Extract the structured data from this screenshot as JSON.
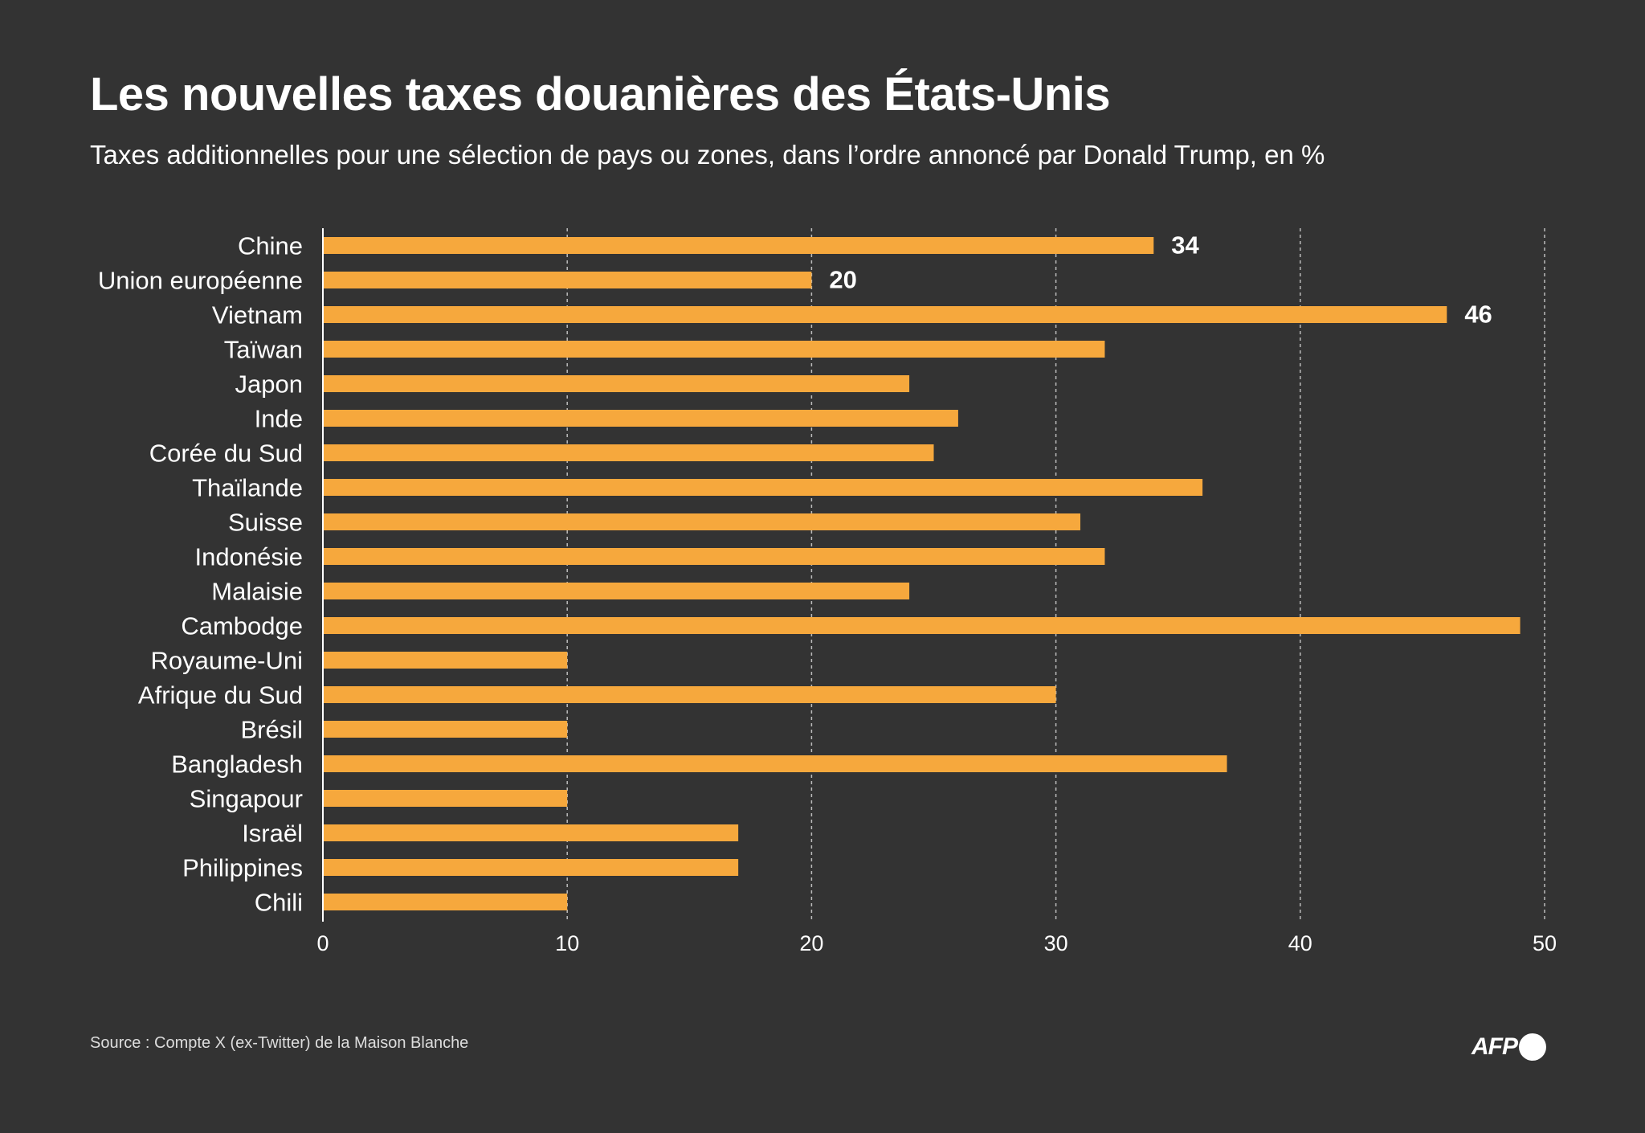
{
  "title": "Les nouvelles taxes douanières des États-Unis",
  "subtitle": "Taxes additionnelles pour une sélection de pays ou zones, dans l’ordre annoncé par Donald Trump, en %",
  "source": "Source : Compte X (ex-Twitter) de la Maison Blanche",
  "logo_text": "AFP",
  "colors": {
    "background": "#333333",
    "bar": "#F6A83D",
    "grid": "#bbbbbb",
    "text": "#ffffff"
  },
  "chart_data": {
    "type": "bar",
    "orientation": "horizontal",
    "title": "Les nouvelles taxes douanières des États-Unis",
    "subtitle": "Taxes additionnelles pour une sélection de pays ou zones, dans l’ordre annoncé par Donald Trump, en %",
    "xlabel": "",
    "ylabel": "",
    "xlim": [
      0,
      50
    ],
    "xticks": [
      0,
      10,
      20,
      30,
      40,
      50
    ],
    "grid": "vertical dashed",
    "categories": [
      "Chine",
      "Union européenne",
      "Vietnam",
      "Taïwan",
      "Japon",
      "Inde",
      "Corée du Sud",
      "Thaïlande",
      "Suisse",
      "Indonésie",
      "Malaisie",
      "Cambodge",
      "Royaume-Uni",
      "Afrique du Sud",
      "Brésil",
      "Bangladesh",
      "Singapour",
      "Israël",
      "Philippines",
      "Chili"
    ],
    "values": [
      34,
      20,
      46,
      32,
      24,
      26,
      25,
      36,
      31,
      32,
      24,
      49,
      10,
      30,
      10,
      37,
      10,
      17,
      17,
      10
    ],
    "data_labels": [
      {
        "category": "Chine",
        "text": "34"
      },
      {
        "category": "Union européenne",
        "text": "20"
      },
      {
        "category": "Vietnam",
        "text": "46"
      }
    ]
  }
}
